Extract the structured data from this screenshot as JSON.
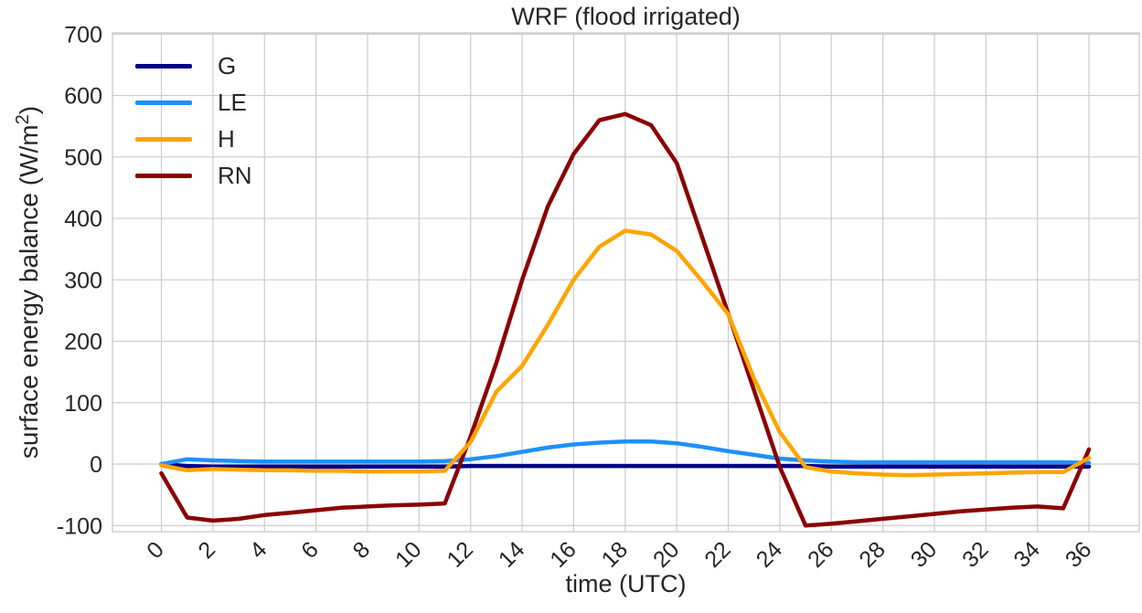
{
  "chart_data": {
    "type": "line",
    "title": "WRF (flood irrigated)",
    "xlabel": "time (UTC)",
    "ylabel": "surface energy balance (W/m²)",
    "ylabel_parts": {
      "before_sup": "surface energy balance (W/m",
      "sup": "2",
      "after_sup": ")"
    },
    "x": [
      0,
      1,
      2,
      3,
      4,
      5,
      6,
      7,
      8,
      9,
      10,
      11,
      12,
      13,
      14,
      15,
      16,
      17,
      18,
      19,
      20,
      21,
      22,
      23,
      24,
      25,
      26,
      27,
      28,
      29,
      30,
      31,
      32,
      33,
      34,
      35,
      36
    ],
    "series": [
      {
        "name": "G",
        "color": "#00008b",
        "values": [
          0,
          -3,
          -4,
          -4,
          -4,
          -4,
          -4,
          -4,
          -4,
          -4,
          -4,
          -4,
          -3,
          -3,
          -3,
          -3,
          -3,
          -3,
          -3,
          -3,
          -3,
          -3,
          -3,
          -3,
          -3,
          -3,
          -4,
          -4,
          -4,
          -4,
          -4,
          -4,
          -4,
          -4,
          -4,
          -4,
          -4
        ]
      },
      {
        "name": "LE",
        "color": "#1e90ff",
        "values": [
          0,
          8,
          6,
          5,
          4,
          4,
          4,
          4,
          4,
          4,
          4,
          5,
          8,
          13,
          20,
          27,
          32,
          35,
          37,
          37,
          34,
          28,
          21,
          15,
          9,
          6,
          4,
          3,
          3,
          3,
          3,
          3,
          3,
          3,
          3,
          3,
          2
        ]
      },
      {
        "name": "H",
        "color": "#ffa500",
        "values": [
          -2,
          -10,
          -8,
          -9,
          -10,
          -10,
          -11,
          -11,
          -12,
          -12,
          -12,
          -11,
          36,
          118,
          160,
          227,
          300,
          354,
          380,
          374,
          347,
          297,
          244,
          139,
          52,
          -5,
          -12,
          -15,
          -17,
          -18,
          -17,
          -16,
          -15,
          -14,
          -13,
          -13,
          10
        ]
      },
      {
        "name": "RN",
        "color": "#8b0000",
        "values": [
          -15,
          -87,
          -92,
          -89,
          -83,
          -79,
          -75,
          -71,
          -69,
          -67,
          -66,
          -64,
          45,
          165,
          300,
          420,
          505,
          560,
          570,
          552,
          490,
          368,
          245,
          120,
          -5,
          -100,
          -97,
          -93,
          -89,
          -85,
          -81,
          -77,
          -74,
          -71,
          -69,
          -72,
          24
        ]
      }
    ],
    "x_ticks": [
      0,
      2,
      4,
      6,
      8,
      10,
      12,
      14,
      16,
      18,
      20,
      22,
      24,
      26,
      28,
      30,
      32,
      34,
      36
    ],
    "y_ticks": [
      -100,
      0,
      100,
      200,
      300,
      400,
      500,
      600,
      700
    ],
    "xlim": [
      -1.9,
      37.95
    ],
    "ylim": [
      -110,
      702
    ],
    "grid": true,
    "legend_position": "upper left"
  },
  "style": {
    "grid_color": "#cccccc",
    "text_color": "#262626",
    "background": "#ffffff",
    "line_width": 4.5
  }
}
